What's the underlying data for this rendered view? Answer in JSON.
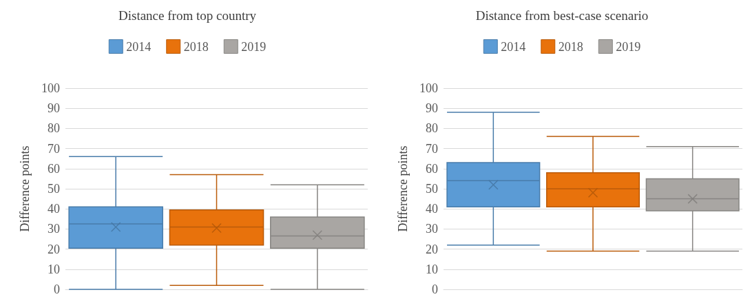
{
  "chart_data": [
    {
      "type": "box",
      "title": "Distance from top country",
      "ylabel": "Difference points",
      "categories": [
        null
      ],
      "ylim": [
        0,
        100
      ],
      "yticks": [
        0,
        10,
        20,
        30,
        40,
        50,
        60,
        70,
        80,
        90,
        100
      ],
      "grid": "y",
      "legend": "top",
      "marker": "cross",
      "series": [
        {
          "name": "2014",
          "color": "#5b9bd5",
          "boxes": [
            {
              "low": 0,
              "q1": 20.5,
              "median": 32.5,
              "q3": 41,
              "high": 66,
              "mean": 31
            }
          ]
        },
        {
          "name": "2018",
          "color": "#e8720c",
          "boxes": [
            {
              "low": 2,
              "q1": 22,
              "median": 31,
              "q3": 39.5,
              "high": 57,
              "mean": 30.5
            }
          ]
        },
        {
          "name": "2019",
          "color": "#a9a6a3",
          "boxes": [
            {
              "low": 0,
              "q1": 20.5,
              "median": 26.5,
              "q3": 36,
              "high": 52,
              "mean": 27
            }
          ]
        }
      ]
    },
    {
      "type": "box",
      "title": "Distance from best-case scenario",
      "ylabel": "Difference points",
      "categories": [
        null
      ],
      "ylim": [
        0,
        100
      ],
      "yticks": [
        0,
        10,
        20,
        30,
        40,
        50,
        60,
        70,
        80,
        90,
        100
      ],
      "grid": "y",
      "legend": "top",
      "marker": "cross",
      "series": [
        {
          "name": "2014",
          "color": "#5b9bd5",
          "boxes": [
            {
              "low": 22,
              "q1": 41,
              "median": 54,
              "q3": 63,
              "high": 88,
              "mean": 52
            }
          ]
        },
        {
          "name": "2018",
          "color": "#e8720c",
          "boxes": [
            {
              "low": 19,
              "q1": 41,
              "median": 50,
              "q3": 58,
              "high": 76,
              "mean": 48
            }
          ]
        },
        {
          "name": "2019",
          "color": "#a9a6a3",
          "boxes": [
            {
              "low": 19,
              "q1": 39,
              "median": 45,
              "q3": 55,
              "high": 71,
              "mean": 45
            }
          ]
        }
      ]
    }
  ]
}
